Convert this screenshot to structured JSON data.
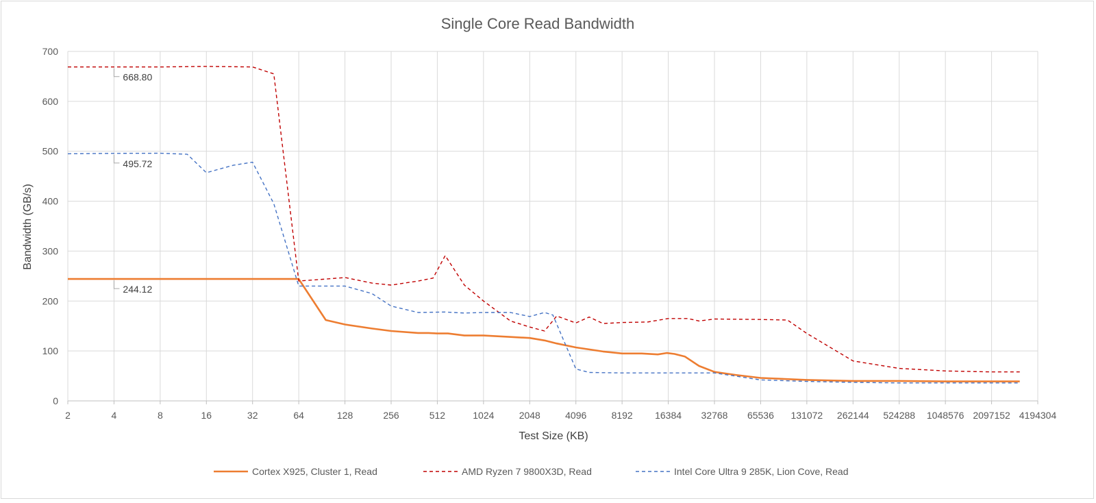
{
  "chart_data": {
    "type": "line",
    "title": "Single Core Read Bandwidth",
    "xlabel": "Test Size (KB)",
    "ylabel": "Bandwidth (GB/s)",
    "ylim": [
      0,
      700
    ],
    "yticks": [
      0,
      100,
      200,
      300,
      400,
      500,
      600,
      700
    ],
    "x_scale": "log2",
    "x_tick_labels": [
      "2",
      "4",
      "8",
      "16",
      "32",
      "64",
      "128",
      "256",
      "512",
      "1024",
      "2048",
      "4096",
      "8192",
      "16384",
      "32768",
      "65536",
      "131072",
      "262144",
      "524288",
      "1048576",
      "2097152",
      "4194304"
    ],
    "grid": true,
    "legend_position": "bottom",
    "series": [
      {
        "name": "Cortex X925, Cluster 1, Read",
        "color": "#ED7D31",
        "style": "solid",
        "points": [
          [
            2,
            244.12
          ],
          [
            4,
            244.12
          ],
          [
            8,
            244.12
          ],
          [
            16,
            244.12
          ],
          [
            32,
            244.12
          ],
          [
            64,
            244.12
          ],
          [
            96,
            162
          ],
          [
            128,
            153
          ],
          [
            192,
            145
          ],
          [
            256,
            140
          ],
          [
            384,
            136
          ],
          [
            448,
            136
          ],
          [
            512,
            135
          ],
          [
            600,
            135
          ],
          [
            768,
            131
          ],
          [
            1024,
            131
          ],
          [
            1536,
            128
          ],
          [
            2048,
            126
          ],
          [
            2560,
            121
          ],
          [
            3072,
            115
          ],
          [
            4096,
            107
          ],
          [
            6144,
            99
          ],
          [
            8192,
            95
          ],
          [
            11000,
            95
          ],
          [
            14000,
            93
          ],
          [
            16000,
            96
          ],
          [
            18000,
            94
          ],
          [
            21000,
            89
          ],
          [
            26000,
            70
          ],
          [
            32768,
            58
          ],
          [
            45000,
            52
          ],
          [
            65536,
            46
          ],
          [
            131072,
            42
          ],
          [
            262144,
            40
          ],
          [
            524288,
            40
          ],
          [
            1048576,
            39
          ],
          [
            2097152,
            39
          ],
          [
            3200000,
            39
          ]
        ]
      },
      {
        "name": "AMD Ryzen 7 9800X3D, Read",
        "color": "#C00000",
        "style": "dashed",
        "points": [
          [
            2,
            668.8
          ],
          [
            4,
            668.8
          ],
          [
            8,
            668.8
          ],
          [
            16,
            670
          ],
          [
            32,
            668.8
          ],
          [
            44,
            655
          ],
          [
            64,
            240
          ],
          [
            96,
            244
          ],
          [
            128,
            247
          ],
          [
            192,
            236
          ],
          [
            256,
            232
          ],
          [
            384,
            240
          ],
          [
            480,
            246
          ],
          [
            576,
            291
          ],
          [
            768,
            232
          ],
          [
            1024,
            200
          ],
          [
            1536,
            160
          ],
          [
            2048,
            148
          ],
          [
            2560,
            140
          ],
          [
            3072,
            170
          ],
          [
            4096,
            156
          ],
          [
            5000,
            168
          ],
          [
            6144,
            155
          ],
          [
            8192,
            157
          ],
          [
            12000,
            158
          ],
          [
            16384,
            165
          ],
          [
            22000,
            165
          ],
          [
            26000,
            160
          ],
          [
            32768,
            164
          ],
          [
            65536,
            163
          ],
          [
            98000,
            162
          ],
          [
            131072,
            135
          ],
          [
            262144,
            80
          ],
          [
            524288,
            65
          ],
          [
            1048576,
            60
          ],
          [
            2097152,
            58
          ],
          [
            3200000,
            58
          ]
        ]
      },
      {
        "name": "Intel Core Ultra 9 285K, Lion Cove, Read",
        "color": "#4472C4",
        "style": "dashed",
        "points": [
          [
            2,
            495
          ],
          [
            4,
            495.72
          ],
          [
            8,
            496
          ],
          [
            12,
            494
          ],
          [
            16,
            457
          ],
          [
            24,
            472
          ],
          [
            32,
            478
          ],
          [
            44,
            395
          ],
          [
            64,
            230
          ],
          [
            128,
            230
          ],
          [
            192,
            215
          ],
          [
            256,
            190
          ],
          [
            384,
            177
          ],
          [
            576,
            178
          ],
          [
            768,
            176
          ],
          [
            1024,
            177
          ],
          [
            1536,
            177
          ],
          [
            2048,
            169
          ],
          [
            2560,
            177
          ],
          [
            2900,
            172
          ],
          [
            4096,
            64
          ],
          [
            5000,
            57
          ],
          [
            8192,
            56
          ],
          [
            16384,
            56
          ],
          [
            32768,
            56
          ],
          [
            65536,
            42
          ],
          [
            131072,
            39
          ],
          [
            262144,
            37
          ],
          [
            524288,
            36
          ],
          [
            1048576,
            36
          ],
          [
            2097152,
            36
          ],
          [
            3200000,
            36
          ]
        ]
      }
    ],
    "annotations": [
      {
        "series": 1,
        "x": 4,
        "y": 668.8,
        "text": "668.80"
      },
      {
        "series": 2,
        "x": 4,
        "y": 495.72,
        "text": "495.72"
      },
      {
        "series": 0,
        "x": 4,
        "y": 244.12,
        "text": "244.12"
      }
    ]
  }
}
